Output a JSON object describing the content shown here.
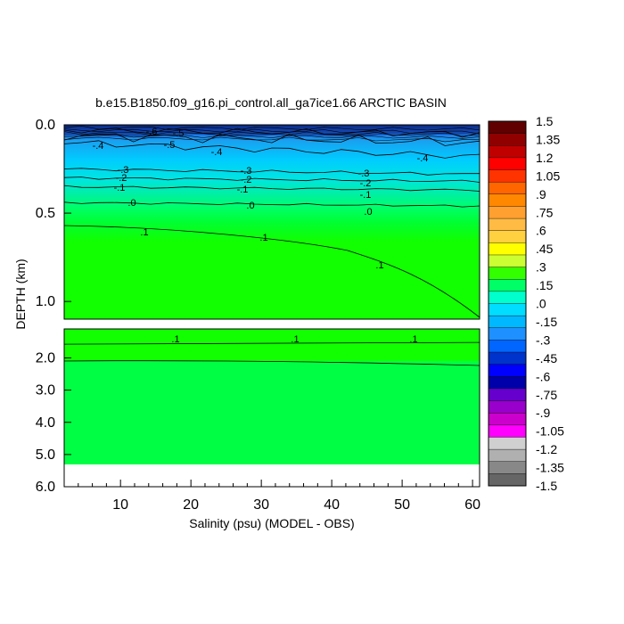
{
  "chart_data": {
    "type": "heatmap",
    "title": "b.e15.B1850.f09_g16.pi_control.all_ga7ice1.66 ARCTIC BASIN",
    "xlabel": "Salinity (psu) (MODEL - OBS)",
    "ylabel": "DEPTH (km)",
    "xlim": [
      2,
      61
    ],
    "x_ticks": [
      "10",
      "20",
      "30",
      "40",
      "50",
      "60"
    ],
    "y_ticks_upper": [
      "0.0",
      "0.5",
      "1.0"
    ],
    "y_ticks_lower": [
      "2.0",
      "3.0",
      "4.0",
      "5.0",
      "6.0"
    ],
    "upper_panel_depth_range_km": [
      0.0,
      1.1
    ],
    "lower_panel_depth_range_km": [
      1.1,
      6.0
    ],
    "colorbar": {
      "labels": [
        "1.5",
        "1.35",
        "1.2",
        "1.05",
        ".9",
        ".75",
        ".6",
        ".45",
        ".3",
        ".15",
        ".0",
        "-.15",
        "-.3",
        "-.45",
        "-.6",
        "-.75",
        "-.9",
        "-1.05",
        "-1.2",
        "-1.35",
        "-1.5"
      ],
      "colors": [
        "#600000",
        "#900000",
        "#c00000",
        "#ff0000",
        "#ff3300",
        "#ff6600",
        "#ff8800",
        "#ffa030",
        "#ffbb44",
        "#ffd040",
        "#ffff00",
        "#ccff33",
        "#33ff00",
        "#00ff66",
        "#00ffcc",
        "#00ddff",
        "#00b8ff",
        "#1e90ff",
        "#0066ff",
        "#0033cc",
        "#0000ff",
        "#0000aa",
        "#6600cc",
        "#9900cc",
        "#cc00cc",
        "#ff00ff",
        "#d0d0d0",
        "#b0b0b0",
        "#888888",
        "#666666"
      ]
    },
    "contours": [
      {
        "level": "-.6",
        "depth_km": [
          0.03,
          0.05
        ]
      },
      {
        "level": "-.5",
        "depth_km": [
          0.06,
          0.1
        ]
      },
      {
        "level": "-.4",
        "depth_km": [
          0.1,
          0.18
        ]
      },
      {
        "level": "-.3",
        "depth_km": [
          0.25,
          0.28
        ]
      },
      {
        "level": "-.2",
        "depth_km": [
          0.3,
          0.32
        ]
      },
      {
        "level": "-.1",
        "depth_km": [
          0.35,
          0.37
        ]
      },
      {
        "level": ".0",
        "depth_km": [
          0.44,
          0.46
        ]
      },
      {
        "level": ".1",
        "depth_km": [
          0.57,
          1.09
        ]
      },
      {
        "level": ".1",
        "depth_km": [
          1.6,
          1.6
        ]
      }
    ],
    "contour_labels": [
      "-.6",
      "-.5",
      "-.5",
      "-.4",
      "-.4",
      "-.4",
      "-.3",
      "-.3",
      "-.3",
      "-.2",
      "-.2",
      "-.2",
      "-.1",
      "-.1",
      "-.1",
      ".0",
      ".0",
      ".0",
      ".1",
      ".1",
      ".1",
      ".1",
      ".1",
      ".1"
    ],
    "fill_regions": [
      {
        "depth_km": [
          0.0,
          0.05
        ],
        "range": "-.75 to -.6"
      },
      {
        "depth_km": [
          0.05,
          0.25
        ],
        "range": "-.45 to -.3"
      },
      {
        "depth_km": [
          0.25,
          0.45
        ],
        "range": "-.3 to .0"
      },
      {
        "depth_km": [
          0.45,
          5.36
        ],
        "range": ".0 to .15"
      }
    ]
  }
}
